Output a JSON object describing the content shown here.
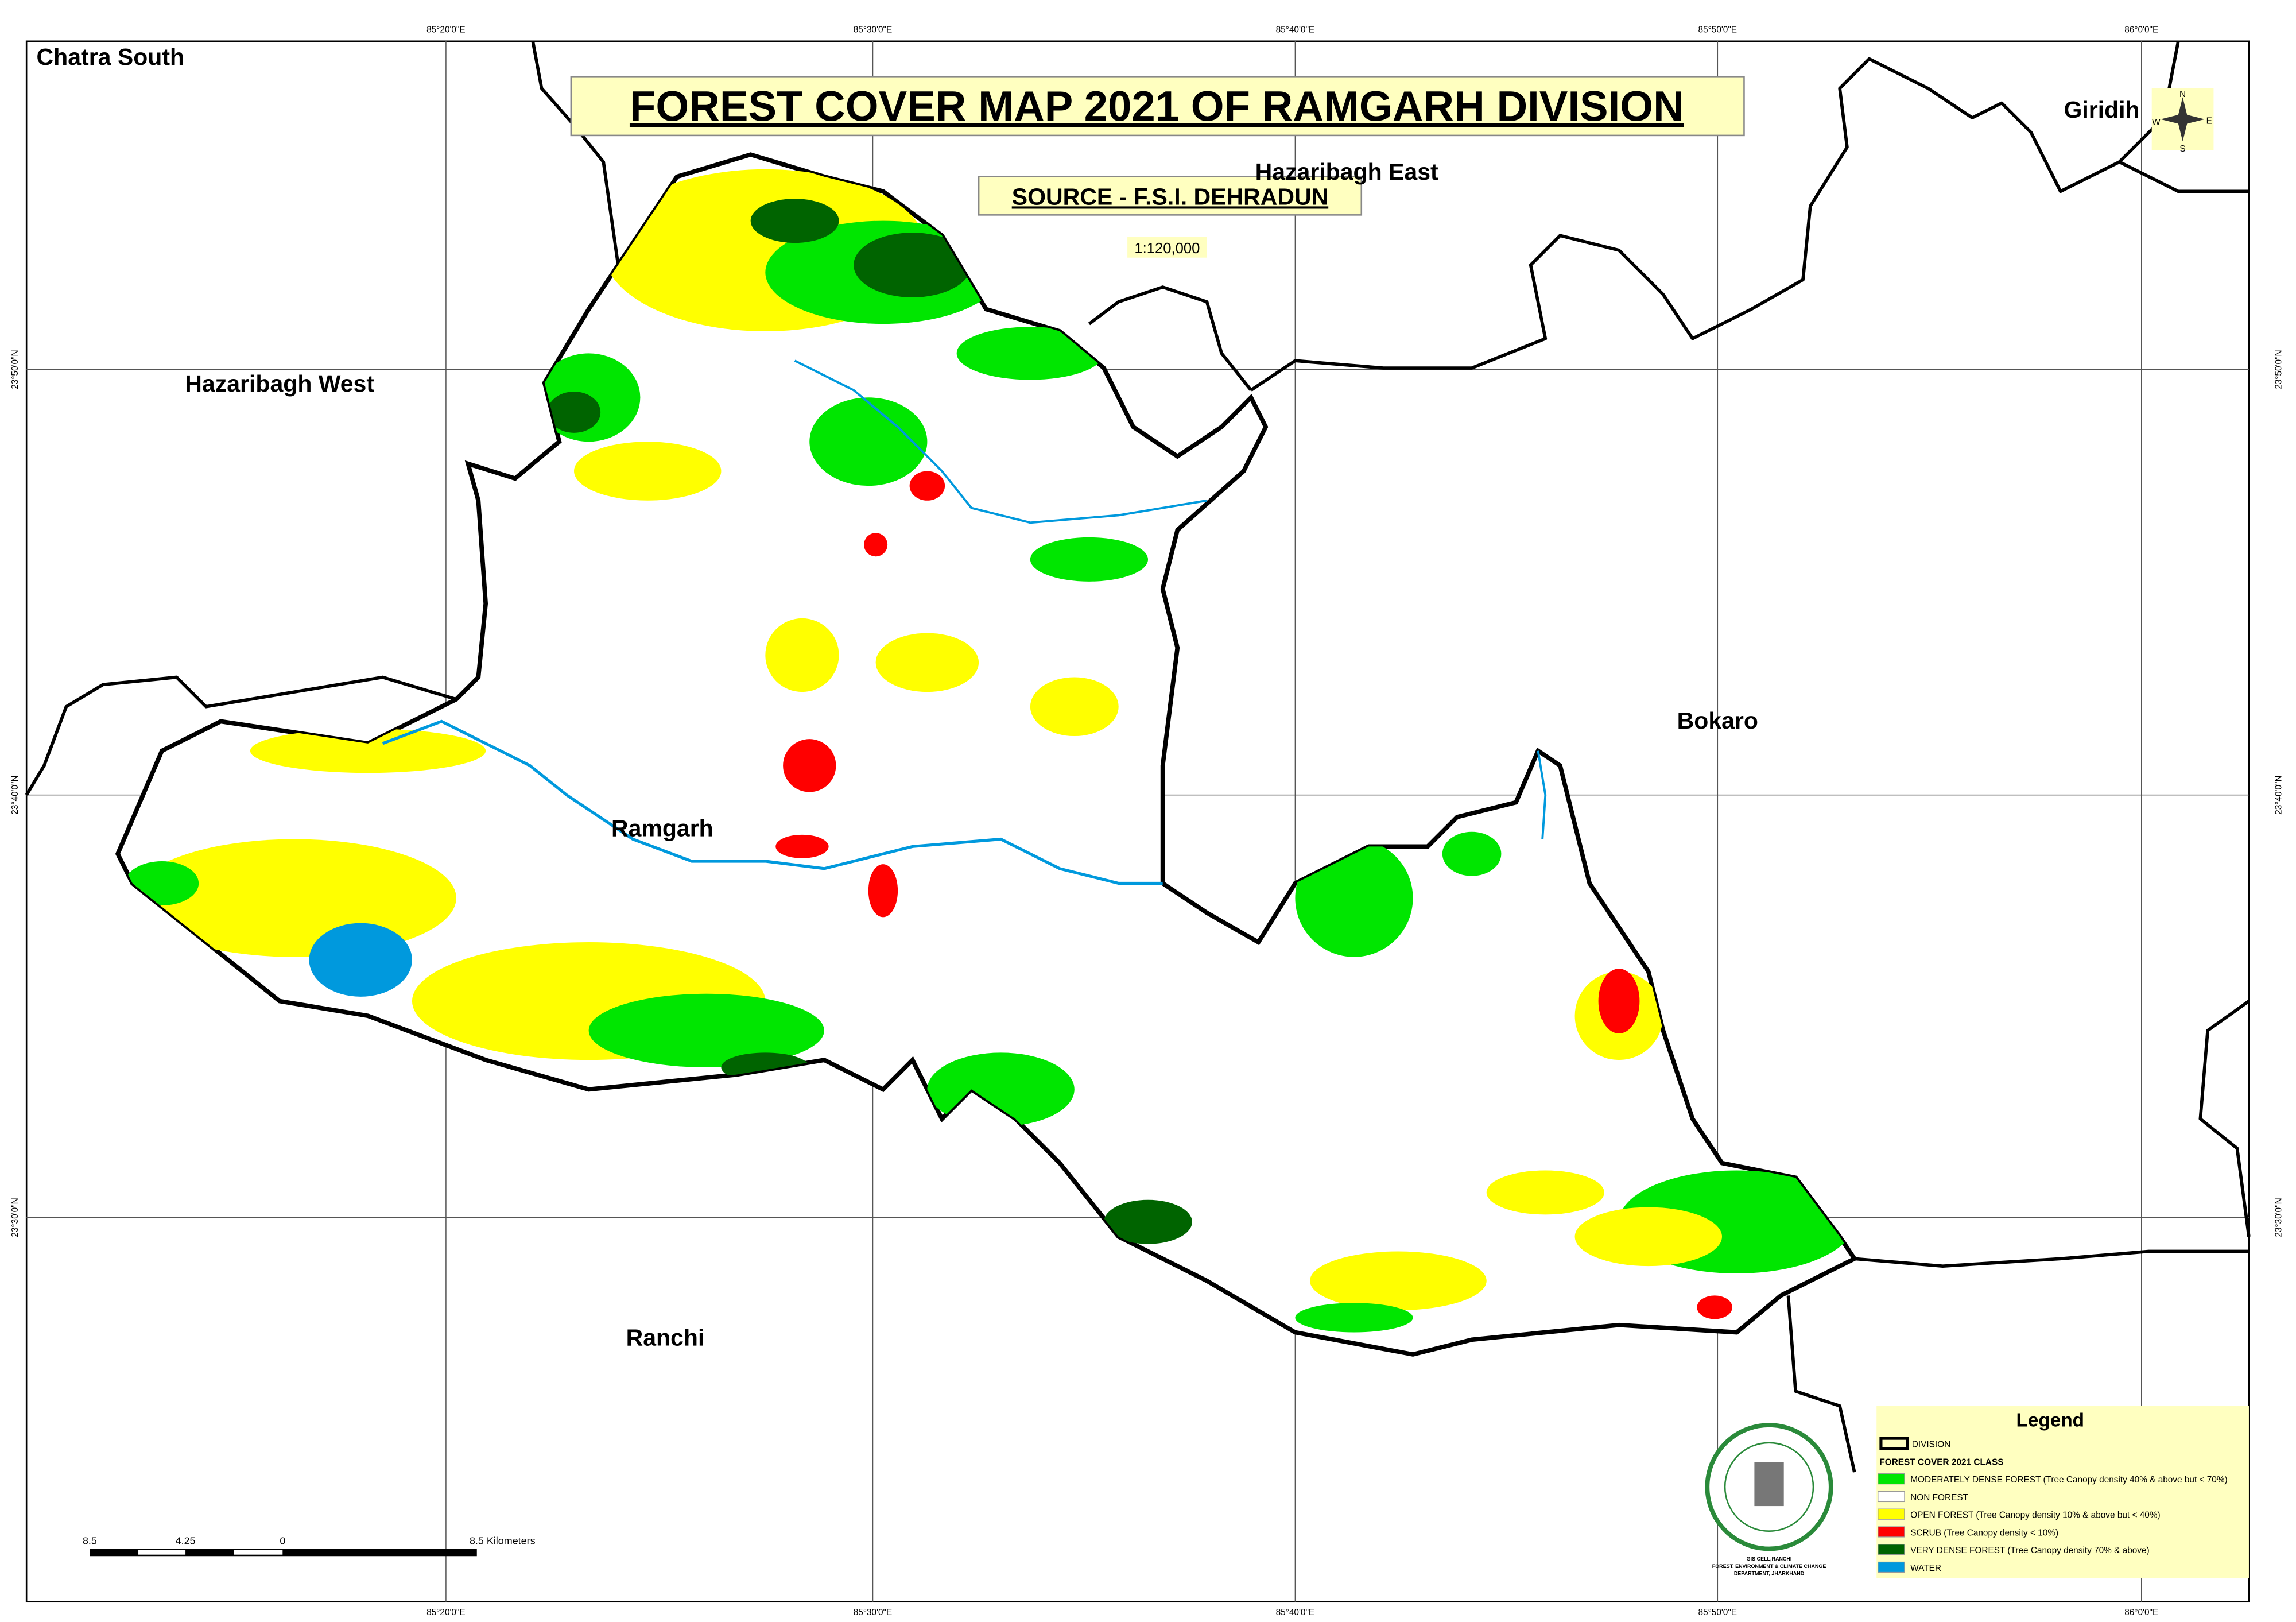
{
  "map": {
    "title": "FOREST COVER MAP 2021  OF RAMGARH DIVISION",
    "source": "SOURCE - F.S.I. DEHRADUN",
    "scale": "1:120,000",
    "regions": [
      "Chatra South",
      "Hazaribagh East",
      "Giridih",
      "Hazaribagh West",
      "Bokaro",
      "Ramgarh",
      "Ranchi"
    ],
    "graticule": {
      "longitudes": [
        "85°20'0\"E",
        "85°30'0\"E",
        "85°40'0\"E",
        "85°50'0\"E",
        "86°0'0\"E"
      ],
      "latitudes": [
        "23°50'0\"N",
        "23°40'0\"N",
        "23°30'0\"N"
      ]
    },
    "compass": [
      "N",
      "S",
      "E",
      "W"
    ],
    "scale_bar": [
      "8.5",
      "4.25",
      "0",
      "8.5 Kilometers"
    ],
    "legend": {
      "title": "Legend",
      "heading": "FOREST COVER 2021 CLASS",
      "entries": [
        {
          "label": "DIVISION"
        },
        {
          "label": "MODERATELY DENSE FOREST (Tree Canopy density 40% & above but < 70%)",
          "color": "#00e600"
        },
        {
          "label": "NON FOREST",
          "color": "#ffffff"
        },
        {
          "label": "OPEN FOREST (Tree Canopy density 10% & above but < 40%)",
          "color": "#ffff00"
        },
        {
          "label": "SCRUB (Tree Canopy density < 10%)",
          "color": "#ff0000"
        },
        {
          "label": "VERY DENSE FOREST (Tree Canopy density 70% & above)",
          "color": "#006400"
        },
        {
          "label": "WATER",
          "color": "#0099dd"
        }
      ]
    },
    "seal": [
      "GIS CELL,RANCHI",
      "FOREST, ENVIRONMENT & CLIMATE CHANGE",
      "DEPARTMENT, JHARKHAND"
    ]
  }
}
